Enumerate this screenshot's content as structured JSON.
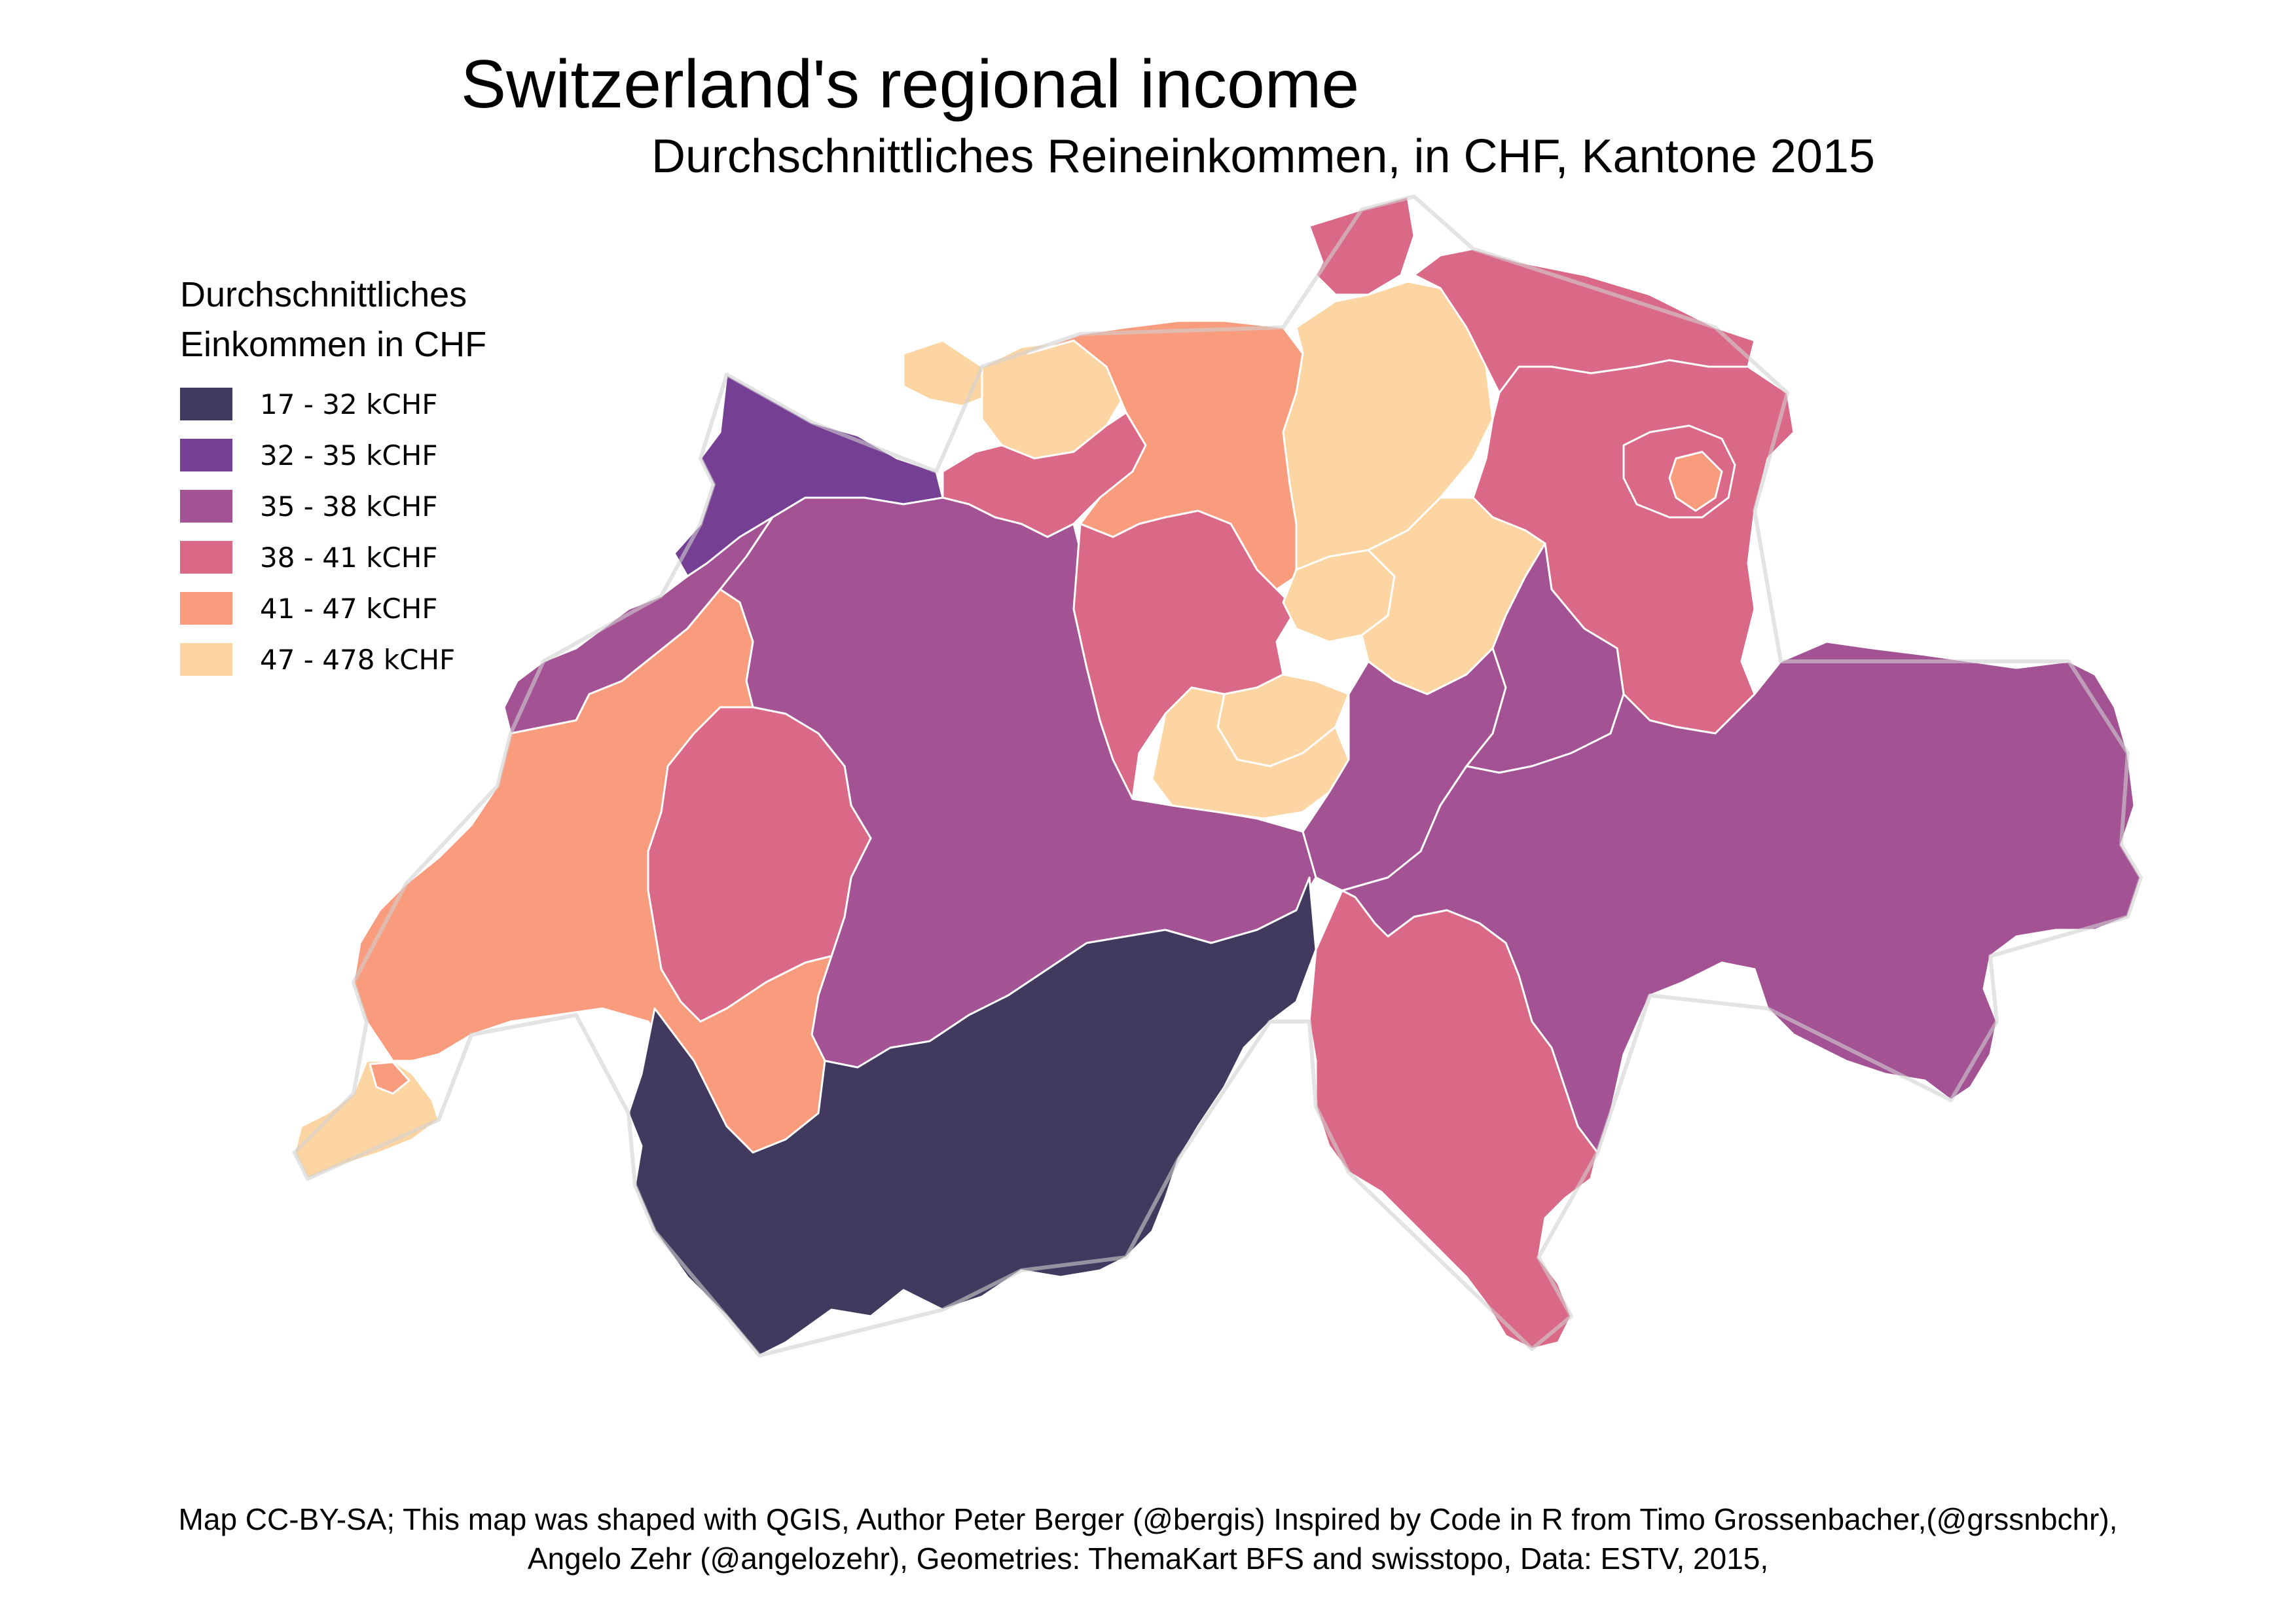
{
  "title": "Switzerland's regional income",
  "subtitle": "Durchschnittliches Reineinkommen, in CHF, Kantone 2015",
  "legend": {
    "title_line1": "Durchschnittliches",
    "title_line2": "Einkommen in CHF",
    "classes": [
      {
        "label": "17 - 32 kCHF",
        "color": "#413a5e"
      },
      {
        "label": "32 - 35 kCHF",
        "color": "#753f93"
      },
      {
        "label": "35 - 38 kCHF",
        "color": "#a35294"
      },
      {
        "label": "38 - 41 kCHF",
        "color": "#da6987"
      },
      {
        "label": "41 - 47 kCHF",
        "color": "#f99c7e"
      },
      {
        "label": "47 - 478 kCHF",
        "color": "#fcd5a2"
      }
    ]
  },
  "footer": {
    "line1": "Map CC-BY-SA; This map was shaped with QGIS, Author Peter Berger (@bergis) Inspired by Code in R from Timo Grossenbacher,(@grssnbchr),",
    "line2": "Angelo Zehr (@angelozehr), Geometries: ThemaKart BFS and swisstopo, Data: ESTV, 2015,"
  },
  "colors": {
    "border": "#ffffff",
    "country_outline": "#d0d0d0"
  }
}
